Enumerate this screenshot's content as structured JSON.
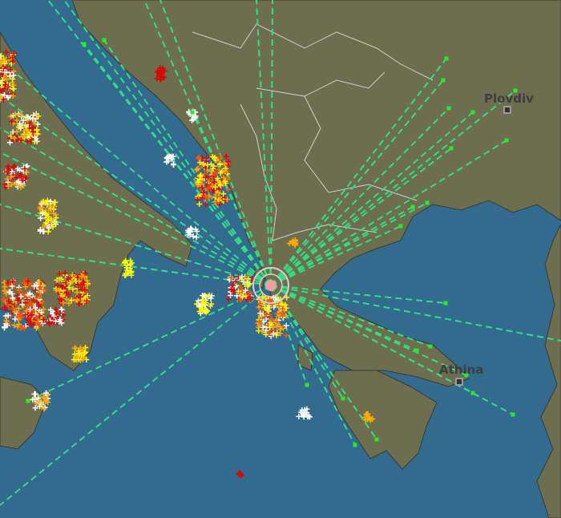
{
  "map": {
    "colors": {
      "sea": "#336b8f",
      "land": "#6d6e50",
      "border": "#d0d0d0",
      "station": "#22ee22",
      "station_line": "#33dd88",
      "strike_recent": "#ffffff",
      "strike_1": "#ffff00",
      "strike_2": "#ffaa00",
      "strike_3": "#ff5500",
      "strike_4": "#dd0000",
      "strike_old": "#b00000"
    },
    "cities": [
      {
        "name": "Plovdiv"
      },
      {
        "name": "Athina"
      }
    ],
    "icons": {
      "station": "station-square-icon",
      "strike": "lightning-cross-icon",
      "target": "target-circle-icon"
    }
  }
}
